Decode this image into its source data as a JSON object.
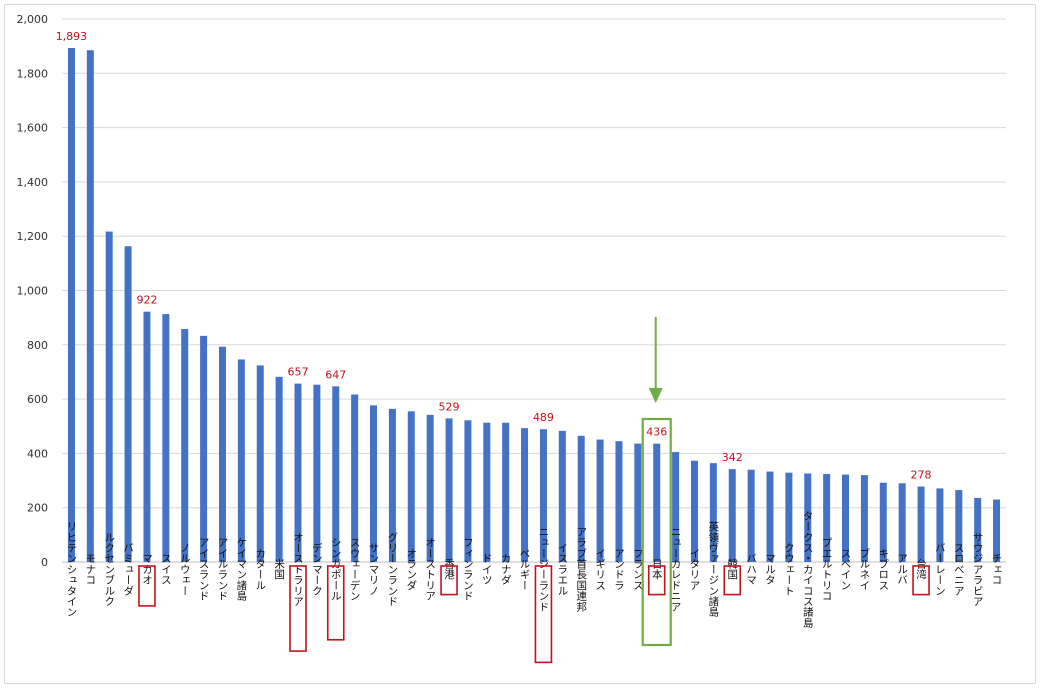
{
  "chart_data": {
    "type": "bar",
    "title": "",
    "xlabel": "",
    "ylabel": "",
    "ylim": [
      0,
      2000
    ],
    "yticks": [
      0,
      200,
      400,
      600,
      800,
      1000,
      1200,
      1400,
      1600,
      1800,
      2000
    ],
    "ytick_labels": [
      "0",
      "200",
      "400",
      "600",
      "800",
      "1,000",
      "1,200",
      "1,400",
      "1,600",
      "1,800",
      "2,000"
    ],
    "grid": true,
    "legend": "none",
    "bar_color": "#4472c4",
    "highlight_color": "#c0141c",
    "arrow_color": "#70ad47",
    "categories": [
      "リヒテンシュタイン",
      "モナコ",
      "ルクセンブルク",
      "バミューダ",
      "マカオ",
      "スイス",
      "ノルウェー",
      "アイスランド",
      "アイルランド",
      "ケイマン諸島",
      "カタール",
      "米国",
      "オーストラリア",
      "デンマーク",
      "シンガポール",
      "スウェーデン",
      "サンマリノ",
      "グリーンランド",
      "オランダ",
      "オーストリア",
      "香港",
      "フィンランド",
      "ドイツ",
      "カナダ",
      "ベルギー",
      "ニュージーランド",
      "イスラエル",
      "アラブ首長国連邦",
      "イギリス",
      "アンドラ",
      "フランス",
      "日本",
      "ニューカレドニア",
      "イタリア",
      "英領ヴァージン諸島",
      "韓国",
      "バハマ",
      "マルタ",
      "クウェート",
      "タークス・カイコス諸島",
      "プエルトリコ",
      "スペイン",
      "ブルネイ",
      "キプロス",
      "アルバ",
      "台湾",
      "バーレーン",
      "スロベニア",
      "サウジアラビア",
      "チェコ"
    ],
    "values": [
      1893,
      1885,
      1217,
      1163,
      922,
      913,
      858,
      833,
      793,
      746,
      724,
      682,
      657,
      653,
      647,
      617,
      577,
      564,
      555,
      542,
      529,
      522,
      513,
      513,
      493,
      489,
      483,
      465,
      451,
      445,
      436,
      436,
      405,
      373,
      364,
      342,
      340,
      333,
      329,
      326,
      324,
      322,
      320,
      292,
      290,
      278,
      271,
      265,
      236,
      230
    ],
    "data_labels": [
      {
        "category": "リヒテンシュタイン",
        "text": "1,893"
      },
      {
        "category": "マカオ",
        "text": "922"
      },
      {
        "category": "オーストラリア",
        "text": "657"
      },
      {
        "category": "シンガポール",
        "text": "647"
      },
      {
        "category": "香港",
        "text": "529"
      },
      {
        "category": "ニュージーランド",
        "text": "489"
      },
      {
        "category": "日本",
        "text": "436"
      },
      {
        "category": "韓国",
        "text": "342"
      },
      {
        "category": "台湾",
        "text": "278"
      }
    ],
    "boxed_labels": [
      "マカオ",
      "オーストラリア",
      "シンガポール",
      "香港",
      "ニュージーランド",
      "日本",
      "韓国",
      "台湾"
    ],
    "green_highlight": "日本"
  }
}
